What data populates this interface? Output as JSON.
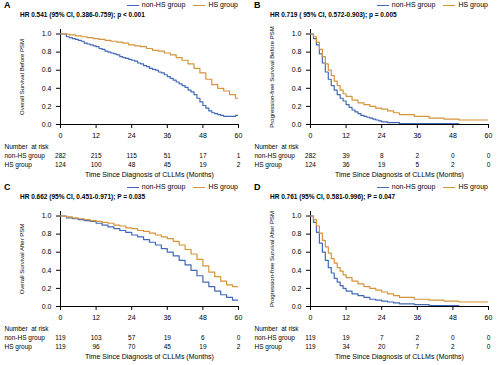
{
  "chart_data": [
    {
      "type": "step",
      "title": "A",
      "ylabel": "Overall Survival Before PSM",
      "xlabel": "Time Since Diagnosis of CLLMs (Months)",
      "series": [
        {
          "name": "non-HS group",
          "color": "#4169b8",
          "x": [
            0,
            2,
            3,
            4,
            5,
            6,
            7,
            8,
            9,
            10,
            11,
            12,
            13,
            14,
            15,
            16,
            17,
            18,
            19,
            20,
            21,
            22,
            23,
            24,
            25,
            26,
            27,
            28,
            29,
            30,
            31,
            32,
            33,
            34,
            35,
            36,
            37,
            38,
            39,
            40,
            41,
            42,
            43,
            44,
            45,
            46,
            47,
            48,
            49,
            50,
            51,
            52,
            53,
            54,
            55,
            56,
            57,
            58,
            59,
            60
          ],
          "values": [
            1.0,
            0.97,
            0.96,
            0.95,
            0.94,
            0.93,
            0.92,
            0.9,
            0.89,
            0.88,
            0.87,
            0.86,
            0.84,
            0.83,
            0.81,
            0.8,
            0.79,
            0.78,
            0.77,
            0.75,
            0.74,
            0.73,
            0.72,
            0.71,
            0.7,
            0.68,
            0.67,
            0.65,
            0.64,
            0.62,
            0.61,
            0.6,
            0.58,
            0.57,
            0.55,
            0.53,
            0.51,
            0.49,
            0.47,
            0.45,
            0.43,
            0.41,
            0.38,
            0.36,
            0.33,
            0.29,
            0.25,
            0.21,
            0.18,
            0.15,
            0.13,
            0.12,
            0.11,
            0.1,
            0.09,
            0.09,
            0.09,
            0.09,
            0.1,
            0.1
          ]
        },
        {
          "name": "HS group",
          "color": "#d4943a",
          "x": [
            0,
            3,
            5,
            7,
            9,
            11,
            13,
            15,
            17,
            19,
            21,
            23,
            25,
            27,
            29,
            31,
            33,
            35,
            37,
            39,
            41,
            43,
            45,
            47,
            49,
            51,
            53,
            55,
            57,
            59,
            60
          ],
          "values": [
            1.0,
            0.99,
            0.98,
            0.97,
            0.96,
            0.95,
            0.94,
            0.93,
            0.92,
            0.91,
            0.9,
            0.88,
            0.87,
            0.86,
            0.84,
            0.82,
            0.81,
            0.79,
            0.77,
            0.74,
            0.71,
            0.67,
            0.62,
            0.57,
            0.5,
            0.44,
            0.4,
            0.37,
            0.33,
            0.29,
            0.28
          ]
        }
      ],
      "annotations": [
        {
          "text": "HR 0.541 (95% CI, 0.386-0.759); p < 0.001"
        }
      ],
      "at_risk": {
        "title": "Number  at risk",
        "x": [
          0,
          12,
          24,
          36,
          48,
          60
        ],
        "rows": [
          {
            "name": "non-HS group",
            "values": [
              282,
              215,
              115,
              51,
              17,
              1
            ]
          },
          {
            "name": "HS group",
            "values": [
              124,
              100,
              48,
              45,
              19,
              2
            ]
          }
        ]
      },
      "xlim": [
        0,
        60
      ],
      "ylim": [
        0.0,
        1.05
      ],
      "xticks": [
        0,
        12,
        24,
        36,
        48,
        60
      ],
      "yticks": [
        {
          "value": 0,
          "label": "0.0"
        },
        0.2,
        0.4,
        0.6,
        0.8,
        {
          "value": 1,
          "label": "1.0"
        }
      ],
      "legend": "upper right"
    },
    {
      "type": "step",
      "title": "B",
      "ylabel": "Progression-free Survival Before PSM",
      "xlabel": "Time Since Diagnosis of CLLMs (Months)",
      "series": [
        {
          "name": "non-HS group",
          "color": "#4169b8",
          "x": [
            0,
            1,
            2,
            3,
            4,
            5,
            6,
            7,
            8,
            9,
            10,
            11,
            12,
            13,
            14,
            15,
            16,
            17,
            18,
            19,
            20,
            21,
            22,
            23,
            24,
            25,
            26,
            27,
            28,
            30,
            35,
            40,
            45,
            50,
            55,
            60
          ],
          "values": [
            1.0,
            0.95,
            0.88,
            0.78,
            0.68,
            0.58,
            0.5,
            0.43,
            0.38,
            0.33,
            0.29,
            0.26,
            0.22,
            0.19,
            0.16,
            0.14,
            0.12,
            0.1,
            0.09,
            0.08,
            0.07,
            0.06,
            0.05,
            0.04,
            0.03,
            0.03,
            0.02,
            0.02,
            0.02,
            0.01,
            0.01,
            0.01,
            0.01,
            0.0,
            0.0,
            0.0
          ]
        },
        {
          "name": "HS group",
          "color": "#d4943a",
          "x": [
            0,
            1,
            2,
            3,
            4,
            5,
            6,
            7,
            8,
            9,
            10,
            11,
            12,
            14,
            16,
            18,
            20,
            22,
            24,
            26,
            28,
            30,
            35,
            40,
            45,
            50,
            54,
            60
          ],
          "values": [
            1.0,
            0.97,
            0.91,
            0.83,
            0.75,
            0.67,
            0.6,
            0.54,
            0.48,
            0.43,
            0.38,
            0.34,
            0.31,
            0.27,
            0.24,
            0.22,
            0.2,
            0.18,
            0.17,
            0.15,
            0.13,
            0.11,
            0.09,
            0.07,
            0.06,
            0.05,
            0.05,
            0.05
          ]
        }
      ],
      "annotations": [
        {
          "text": "HR 0.719 ( 95% CI, 0.572-0.903); p = 0.005"
        }
      ],
      "at_risk": {
        "title": "Number  at risk",
        "x": [
          0,
          12,
          24,
          36,
          48,
          60
        ],
        "rows": [
          {
            "name": "non-HS group",
            "values": [
              282,
              39,
              8,
              2,
              0,
              0
            ]
          },
          {
            "name": "HS group",
            "values": [
              124,
              36,
              19,
              5,
              2,
              0
            ]
          }
        ]
      },
      "xlim": [
        0,
        60
      ],
      "ylim": [
        0.0,
        1.05
      ],
      "xticks": [
        0,
        12,
        24,
        36,
        48,
        60
      ],
      "yticks": [
        {
          "value": 0,
          "label": "0.0"
        },
        0.2,
        0.4,
        0.6,
        0.8,
        {
          "value": 1,
          "label": "1.0"
        }
      ],
      "legend": "upper right"
    },
    {
      "type": "step",
      "title": "C",
      "ylabel": "Overall Survival After PSM",
      "xlabel": "Time Since Diagnosis of CLLMs (Months)",
      "series": [
        {
          "name": "non-HS group",
          "color": "#4169b8",
          "x": [
            0,
            2,
            4,
            6,
            8,
            10,
            12,
            14,
            16,
            18,
            20,
            22,
            24,
            26,
            28,
            30,
            32,
            34,
            36,
            38,
            40,
            42,
            44,
            46,
            48,
            50,
            52,
            54,
            56,
            58,
            60
          ],
          "values": [
            1.0,
            0.98,
            0.97,
            0.96,
            0.95,
            0.94,
            0.92,
            0.9,
            0.88,
            0.86,
            0.84,
            0.82,
            0.79,
            0.77,
            0.74,
            0.71,
            0.68,
            0.64,
            0.6,
            0.56,
            0.51,
            0.46,
            0.4,
            0.34,
            0.27,
            0.22,
            0.17,
            0.13,
            0.1,
            0.07,
            0.05
          ]
        },
        {
          "name": "HS group",
          "color": "#d4943a",
          "x": [
            0,
            2,
            4,
            6,
            8,
            10,
            12,
            14,
            16,
            18,
            20,
            22,
            24,
            26,
            28,
            30,
            32,
            34,
            36,
            38,
            40,
            42,
            44,
            46,
            48,
            50,
            52,
            54,
            56,
            58,
            60
          ],
          "values": [
            1.0,
            0.99,
            0.98,
            0.97,
            0.96,
            0.95,
            0.94,
            0.93,
            0.92,
            0.9,
            0.89,
            0.87,
            0.86,
            0.84,
            0.83,
            0.81,
            0.79,
            0.77,
            0.75,
            0.72,
            0.68,
            0.63,
            0.58,
            0.52,
            0.45,
            0.38,
            0.33,
            0.28,
            0.24,
            0.22,
            0.2
          ]
        }
      ],
      "annotations": [
        {
          "text": "HR 0.662 (95% CI, 0.451-0.971); P = 0.035"
        }
      ],
      "at_risk": {
        "title": "Number  at risk",
        "x": [
          0,
          12,
          24,
          36,
          48,
          60
        ],
        "rows": [
          {
            "name": "non-HS group",
            "values": [
              119,
              103,
              57,
              19,
              6,
              0
            ]
          },
          {
            "name": "HS group",
            "values": [
              119,
              96,
              70,
              45,
              19,
              2
            ]
          }
        ]
      },
      "xlim": [
        0,
        60
      ],
      "ylim": [
        0.0,
        1.05
      ],
      "xticks": [
        0,
        12,
        24,
        36,
        48,
        60
      ],
      "yticks": [
        {
          "value": 0,
          "label": "0.0"
        },
        0.2,
        0.4,
        0.6,
        0.8,
        {
          "value": 1,
          "label": "1.0"
        }
      ],
      "legend": "upper right"
    },
    {
      "type": "step",
      "title": "D",
      "ylabel": "Progression-free Survival After PSM",
      "xlabel": "Time Since Diagnosis of CLLMs (Months)",
      "series": [
        {
          "name": "non-HS group",
          "color": "#4169b8",
          "x": [
            0,
            1,
            2,
            3,
            4,
            5,
            6,
            7,
            8,
            9,
            10,
            11,
            12,
            14,
            16,
            18,
            20,
            22,
            24,
            26,
            28,
            30,
            35,
            40,
            45,
            50,
            55,
            60
          ],
          "values": [
            1.0,
            0.93,
            0.82,
            0.7,
            0.6,
            0.51,
            0.43,
            0.37,
            0.31,
            0.27,
            0.23,
            0.2,
            0.17,
            0.14,
            0.12,
            0.1,
            0.08,
            0.07,
            0.06,
            0.05,
            0.04,
            0.03,
            0.02,
            0.01,
            0.01,
            0.0,
            0.0,
            0.0
          ]
        },
        {
          "name": "HS group",
          "color": "#d4943a",
          "x": [
            0,
            1,
            2,
            3,
            4,
            5,
            6,
            7,
            8,
            9,
            10,
            11,
            12,
            14,
            16,
            18,
            20,
            22,
            24,
            26,
            28,
            30,
            35,
            40,
            45,
            50,
            54,
            60
          ],
          "values": [
            1.0,
            0.96,
            0.89,
            0.81,
            0.73,
            0.66,
            0.59,
            0.53,
            0.48,
            0.43,
            0.39,
            0.35,
            0.32,
            0.28,
            0.25,
            0.22,
            0.2,
            0.18,
            0.16,
            0.14,
            0.12,
            0.1,
            0.08,
            0.07,
            0.06,
            0.05,
            0.05,
            0.05
          ]
        }
      ],
      "annotations": [
        {
          "text": "HR 0.761 (95% CI, 0.581-0.996); P = 0.047"
        }
      ],
      "at_risk": {
        "title": "Number  at risk",
        "x": [
          0,
          12,
          24,
          36,
          48,
          60
        ],
        "rows": [
          {
            "name": "non-HS group",
            "values": [
              119,
              19,
              7,
              2,
              0,
              0
            ]
          },
          {
            "name": "HS group",
            "values": [
              119,
              34,
              20,
              7,
              2,
              0
            ]
          }
        ]
      },
      "xlim": [
        0,
        60
      ],
      "ylim": [
        0.0,
        1.05
      ],
      "xticks": [
        0,
        12,
        24,
        36,
        48,
        60
      ],
      "yticks": [
        {
          "value": 0,
          "label": "0.0"
        },
        0.2,
        0.4,
        0.6,
        0.8,
        {
          "value": 1,
          "label": "1.0"
        }
      ],
      "legend": "upper right"
    }
  ]
}
